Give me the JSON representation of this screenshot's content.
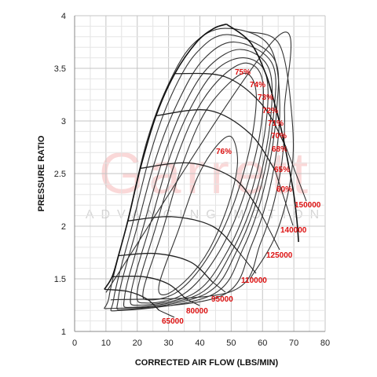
{
  "chart_data": {
    "type": "line",
    "title": "",
    "xlabel": "CORRECTED AIR FLOW (LBS/MIN)",
    "ylabel": "PRESSURE RATIO",
    "xlim": [
      0,
      80
    ],
    "ylim": [
      1,
      4
    ],
    "x_ticks": [
      "0",
      "10",
      "20",
      "30",
      "40",
      "50",
      "60",
      "70",
      "80"
    ],
    "y_ticks": [
      "1",
      "1.5",
      "2",
      "2.5",
      "3",
      "3.5",
      "4"
    ],
    "grid": true,
    "watermark": {
      "main": "Garrett",
      "sub": "ADVANCING MOTION"
    },
    "colors": {
      "curves": "#222222",
      "labels": "#dd1111",
      "grid": "#cfcfcf",
      "watermark": "#f08080"
    },
    "surge_line": [
      [
        9.5,
        1.4
      ],
      [
        12,
        1.52
      ],
      [
        14,
        1.72
      ],
      [
        17,
        2.05
      ],
      [
        21,
        2.55
      ],
      [
        26,
        3.05
      ],
      [
        32,
        3.45
      ],
      [
        39,
        3.75
      ],
      [
        44.5,
        3.88
      ],
      [
        48.5,
        3.92
      ]
    ],
    "choke_line": [
      [
        48.5,
        3.92
      ],
      [
        56,
        3.75
      ],
      [
        61,
        3.45
      ],
      [
        64,
        3.15
      ],
      [
        66.5,
        2.85
      ],
      [
        68.5,
        2.55
      ],
      [
        70,
        2.3
      ],
      [
        71,
        2.05
      ],
      [
        71.5,
        1.85
      ]
    ],
    "speed_lines": [
      {
        "label": "65000",
        "points": [
          [
            9.5,
            1.4
          ],
          [
            17,
            1.38
          ],
          [
            23,
            1.31
          ],
          [
            27,
            1.2
          ]
        ]
      },
      {
        "label": "80000",
        "points": [
          [
            12,
            1.52
          ],
          [
            22,
            1.52
          ],
          [
            30,
            1.45
          ],
          [
            35.5,
            1.31
          ]
        ]
      },
      {
        "label": "95000",
        "points": [
          [
            14,
            1.72
          ],
          [
            26,
            1.74
          ],
          [
            37,
            1.66
          ],
          [
            44,
            1.47
          ]
        ]
      },
      {
        "label": "110000",
        "points": [
          [
            17,
            2.05
          ],
          [
            31,
            2.09
          ],
          [
            44,
            2.0
          ],
          [
            52,
            1.77
          ]
        ]
      },
      {
        "label": "125000",
        "points": [
          [
            21,
            2.55
          ],
          [
            37,
            2.6
          ],
          [
            51,
            2.45
          ],
          [
            59,
            2.15
          ]
        ]
      },
      {
        "label": "140000",
        "points": [
          [
            26,
            3.05
          ],
          [
            43,
            3.1
          ],
          [
            56,
            2.88
          ],
          [
            64,
            2.53
          ]
        ]
      },
      {
        "label": "150000",
        "points": [
          [
            32,
            3.45
          ],
          [
            48,
            3.42
          ],
          [
            60,
            3.15
          ],
          [
            67.5,
            2.75
          ]
        ]
      }
    ],
    "efficiency_islands": [
      {
        "label": "76%",
        "points": [
          [
            27,
            1.45
          ],
          [
            33,
            1.95
          ],
          [
            39,
            2.45
          ],
          [
            45,
            2.75
          ],
          [
            50,
            2.85
          ],
          [
            52,
            2.6
          ],
          [
            49,
            2.2
          ],
          [
            43,
            1.78
          ],
          [
            36,
            1.5
          ],
          [
            29,
            1.35
          ]
        ]
      },
      {
        "label": "75%",
        "points": [
          [
            22,
            1.4
          ],
          [
            28,
            1.95
          ],
          [
            34,
            2.55
          ],
          [
            41,
            3.05
          ],
          [
            49,
            3.35
          ],
          [
            55,
            3.45
          ],
          [
            58,
            3.25
          ],
          [
            56,
            2.75
          ],
          [
            50,
            2.15
          ],
          [
            42,
            1.68
          ],
          [
            33,
            1.38
          ],
          [
            24,
            1.3
          ]
        ]
      },
      {
        "label": "74%",
        "points": [
          [
            20,
            1.38
          ],
          [
            26,
            2.0
          ],
          [
            32,
            2.6
          ],
          [
            39,
            3.1
          ],
          [
            47,
            3.42
          ],
          [
            55,
            3.55
          ],
          [
            60,
            3.38
          ],
          [
            59,
            2.85
          ],
          [
            53,
            2.2
          ],
          [
            45,
            1.7
          ],
          [
            35,
            1.36
          ],
          [
            23,
            1.27
          ]
        ]
      },
      {
        "label": "73%",
        "points": [
          [
            18,
            1.36
          ],
          [
            24,
            2.0
          ],
          [
            30,
            2.62
          ],
          [
            37,
            3.12
          ],
          [
            45,
            3.48
          ],
          [
            54,
            3.6
          ],
          [
            61,
            3.45
          ],
          [
            61,
            2.95
          ],
          [
            56,
            2.28
          ],
          [
            48,
            1.72
          ],
          [
            38,
            1.36
          ],
          [
            21,
            1.25
          ]
        ]
      },
      {
        "label": "72%",
        "points": [
          [
            16,
            1.34
          ],
          [
            22,
            2.0
          ],
          [
            28,
            2.62
          ],
          [
            35,
            3.15
          ],
          [
            43,
            3.52
          ],
          [
            53,
            3.68
          ],
          [
            62,
            3.5
          ],
          [
            62.5,
            3.0
          ],
          [
            58,
            2.33
          ],
          [
            50,
            1.75
          ],
          [
            40,
            1.36
          ],
          [
            19,
            1.23
          ]
        ]
      },
      {
        "label": "71%",
        "points": [
          [
            14,
            1.32
          ],
          [
            20,
            2.0
          ],
          [
            26,
            2.65
          ],
          [
            33,
            3.18
          ],
          [
            41,
            3.58
          ],
          [
            51,
            3.75
          ],
          [
            63,
            3.55
          ],
          [
            63.5,
            3.05
          ],
          [
            59.5,
            2.38
          ],
          [
            52,
            1.78
          ],
          [
            42,
            1.36
          ],
          [
            17,
            1.21
          ]
        ]
      },
      {
        "label": "70%",
        "points": [
          [
            12.5,
            1.31
          ],
          [
            18.5,
            2.02
          ],
          [
            24.5,
            2.72
          ],
          [
            31,
            3.25
          ],
          [
            39,
            3.65
          ],
          [
            49,
            3.82
          ],
          [
            63.5,
            3.6
          ],
          [
            64.5,
            3.1
          ],
          [
            61,
            2.42
          ],
          [
            54,
            1.8
          ],
          [
            44,
            1.35
          ],
          [
            15,
            1.2
          ]
        ]
      },
      {
        "label": "68%",
        "points": [
          [
            11,
            1.33
          ],
          [
            17,
            2.06
          ],
          [
            23,
            2.8
          ],
          [
            29.5,
            3.32
          ],
          [
            37.5,
            3.72
          ],
          [
            48,
            3.88
          ],
          [
            62,
            3.72
          ],
          [
            65.5,
            3.15
          ],
          [
            63,
            2.45
          ],
          [
            56.5,
            1.82
          ],
          [
            47,
            1.34
          ],
          [
            13,
            1.22
          ]
        ]
      },
      {
        "label": "65%",
        "points": [
          [
            10,
            1.37
          ],
          [
            64,
            3.78
          ],
          [
            67,
            3.1
          ],
          [
            65.5,
            2.48
          ],
          [
            59.5,
            1.85
          ],
          [
            50,
            1.38
          ],
          [
            11.5,
            1.3
          ]
        ]
      },
      {
        "label": "60%",
        "points": [
          [
            55,
            3.85
          ],
          [
            65.5,
            3.72
          ],
          [
            69.5,
            3.0
          ],
          [
            69,
            2.45
          ],
          [
            64,
            1.9
          ],
          [
            56,
            1.5
          ]
        ]
      }
    ]
  }
}
